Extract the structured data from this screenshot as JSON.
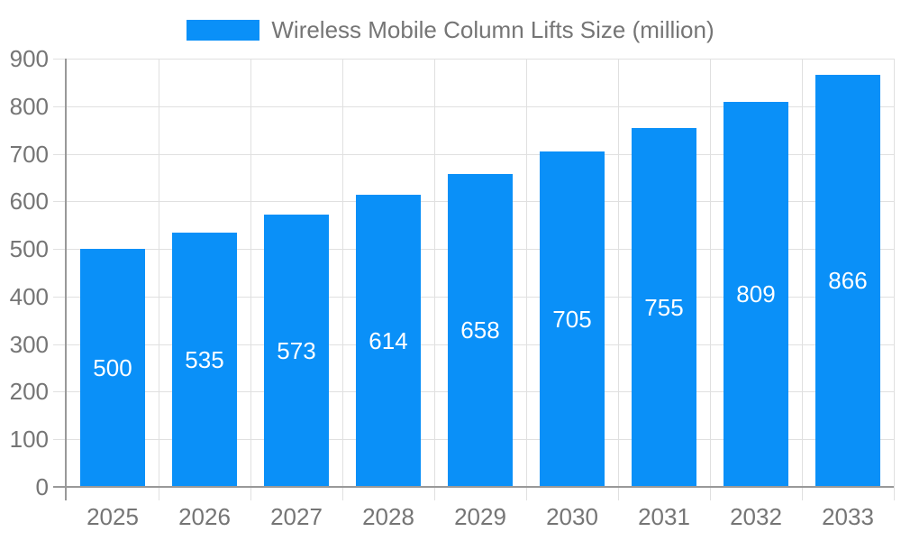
{
  "legend": {
    "label": "Wireless Mobile Column Lifts Size (million)"
  },
  "chart_data": {
    "type": "bar",
    "title": "Wireless Mobile Column Lifts Size (million)",
    "categories": [
      "2025",
      "2026",
      "2027",
      "2028",
      "2029",
      "2030",
      "2031",
      "2032",
      "2033"
    ],
    "values": [
      500,
      535,
      573,
      614,
      658,
      705,
      755,
      809,
      866
    ],
    "series": [
      {
        "name": "Wireless Mobile Column Lifts Size (million)",
        "values": [
          500,
          535,
          573,
          614,
          658,
          705,
          755,
          809,
          866
        ]
      }
    ],
    "xlabel": "",
    "ylabel": "",
    "ylim": [
      0,
      900
    ],
    "ytick_interval": 100,
    "ytick_labels": [
      "0",
      "100",
      "200",
      "300",
      "400",
      "500",
      "600",
      "700",
      "800",
      "900"
    ],
    "grid": true,
    "legend_position": "top",
    "colors": {
      "bar": "#0A90F8",
      "value_label": "#ffffff",
      "axis_line": "#999999",
      "gridline": "#e0e0e0",
      "text": "#757575",
      "background": "#ffffff"
    }
  }
}
